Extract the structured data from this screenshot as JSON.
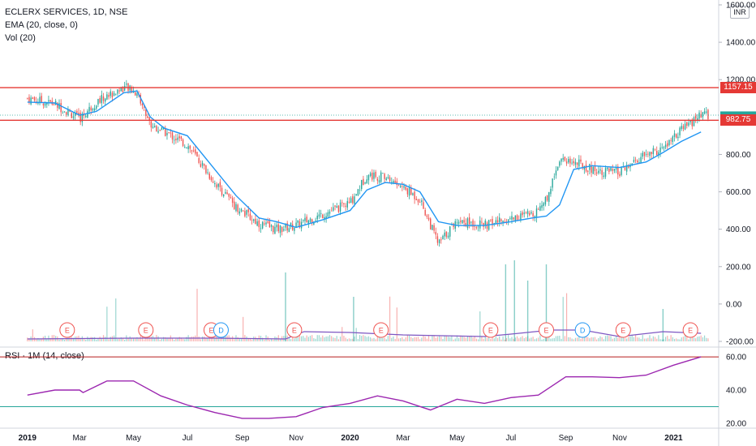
{
  "header": {
    "symbol": "ECLERX SERVICES, 1D, NSE",
    "ema": "EMA (20, close, 0)",
    "vol": "Vol (20)",
    "currency": "INR"
  },
  "rsi_header": "RSI · 1M (14, close)",
  "levels": {
    "upper": {
      "label": "1157.15",
      "value": 1157.15,
      "color": "#e53935"
    },
    "lower": {
      "label": "982.75",
      "value": 982.75,
      "color": "#e53935"
    },
    "last_badge": {
      "value": 982.75,
      "color": "#26a69a"
    }
  },
  "earnings_markers": [
    {
      "label": "E",
      "date": "2019-02-15"
    },
    {
      "label": "E",
      "date": "2019-05-15"
    },
    {
      "label": "E",
      "date": "2019-07-28"
    },
    {
      "label": "D",
      "date": "2019-08-08"
    },
    {
      "label": "E",
      "date": "2019-10-30"
    },
    {
      "label": "E",
      "date": "2020-02-05"
    },
    {
      "label": "E",
      "date": "2020-06-08"
    },
    {
      "label": "E",
      "date": "2020-08-10"
    },
    {
      "label": "D",
      "date": "2020-09-20"
    },
    {
      "label": "E",
      "date": "2020-11-05"
    },
    {
      "label": "E",
      "date": "2021-01-20"
    }
  ],
  "colors": {
    "up": "#26a69a",
    "down": "#ef5350",
    "ema": "#2196f3",
    "rsi": "#9c27b0",
    "rsi_upper": "#b71c1c",
    "rsi_lower": "#26a69a"
  },
  "chart_data": [
    {
      "type": "line",
      "title": "ECLERX SERVICES, 1D, NSE",
      "x_axis_labels": [
        "2019",
        "Mar",
        "May",
        "Jul",
        "Sep",
        "Nov",
        "2020",
        "Mar",
        "May",
        "Jul",
        "Sep",
        "Nov",
        "2021"
      ],
      "y_axis_ticks": [
        "1600.00",
        "1400.00",
        "1200.00",
        "800.00",
        "600.00",
        "400.00",
        "200.00",
        "0.00",
        "-200.00"
      ],
      "ylim": [
        -200,
        1600
      ],
      "series": [
        {
          "name": "EMA (20, close, 0)",
          "x": [
            "2019-01-01",
            "2019-02-01",
            "2019-03-01",
            "2019-03-20",
            "2019-04-20",
            "2019-05-05",
            "2019-05-20",
            "2019-06-05",
            "2019-07-01",
            "2019-08-01",
            "2019-08-25",
            "2019-09-20",
            "2019-10-10",
            "2019-11-01",
            "2019-12-01",
            "2020-01-01",
            "2020-01-20",
            "2020-02-10",
            "2020-03-01",
            "2020-03-20",
            "2020-04-10",
            "2020-05-01",
            "2020-06-01",
            "2020-07-01",
            "2020-07-25",
            "2020-08-10",
            "2020-08-25",
            "2020-09-10",
            "2020-10-01",
            "2020-11-01",
            "2020-12-01",
            "2020-12-20",
            "2021-01-10",
            "2021-02-01"
          ],
          "values": [
            1080,
            1075,
            1010,
            1030,
            1130,
            1140,
            1000,
            940,
            900,
            720,
            580,
            460,
            440,
            410,
            450,
            500,
            610,
            650,
            640,
            600,
            440,
            420,
            420,
            440,
            460,
            470,
            530,
            720,
            740,
            730,
            760,
            810,
            870,
            920
          ]
        },
        {
          "name": "Close",
          "x": [
            "2019-01-01",
            "2019-02-01",
            "2019-03-01",
            "2019-03-20",
            "2019-04-20",
            "2019-05-05",
            "2019-05-20",
            "2019-06-05",
            "2019-07-01",
            "2019-08-01",
            "2019-08-25",
            "2019-09-20",
            "2019-10-10",
            "2019-11-01",
            "2019-12-01",
            "2020-01-01",
            "2020-01-20",
            "2020-02-10",
            "2020-03-01",
            "2020-03-20",
            "2020-04-10",
            "2020-05-01",
            "2020-06-01",
            "2020-07-01",
            "2020-07-25",
            "2020-08-10",
            "2020-08-25",
            "2020-09-10",
            "2020-10-01",
            "2020-11-01",
            "2020-12-01",
            "2020-12-20",
            "2021-01-10",
            "2021-02-01"
          ],
          "values": [
            1100,
            1070,
            990,
            1080,
            1160,
            1130,
            960,
            920,
            850,
            650,
            520,
            430,
            400,
            420,
            480,
            540,
            690,
            680,
            620,
            560,
            320,
            450,
            420,
            460,
            480,
            560,
            780,
            760,
            720,
            700,
            800,
            830,
            930,
            1010
          ]
        }
      ]
    },
    {
      "type": "line",
      "title": "RSI · 1M (14, close)",
      "y_axis_ticks": [
        "60.00",
        "40.00",
        "20.00"
      ],
      "ylim": [
        20,
        62
      ],
      "x": [
        "2019-01-01",
        "2019-02-01",
        "2019-03-01",
        "2019-03-05",
        "2019-04-01",
        "2019-05-01",
        "2019-06-01",
        "2019-07-01",
        "2019-08-01",
        "2019-09-01",
        "2019-10-01",
        "2019-11-01",
        "2019-12-01",
        "2020-01-01",
        "2020-02-01",
        "2020-03-01",
        "2020-04-01",
        "2020-05-01",
        "2020-06-01",
        "2020-07-01",
        "2020-08-01",
        "2020-09-01",
        "2020-10-01",
        "2020-11-01",
        "2020-12-01",
        "2021-01-01",
        "2021-02-01"
      ],
      "values": [
        37,
        40,
        40,
        38.5,
        45.5,
        45.5,
        36.5,
        31,
        26.5,
        23,
        23,
        24,
        29.5,
        32,
        36.5,
        33.5,
        28,
        34.5,
        32,
        35.5,
        37,
        48,
        48,
        47.5,
        49,
        55,
        60
      ],
      "hlines": [
        60,
        30
      ]
    }
  ]
}
